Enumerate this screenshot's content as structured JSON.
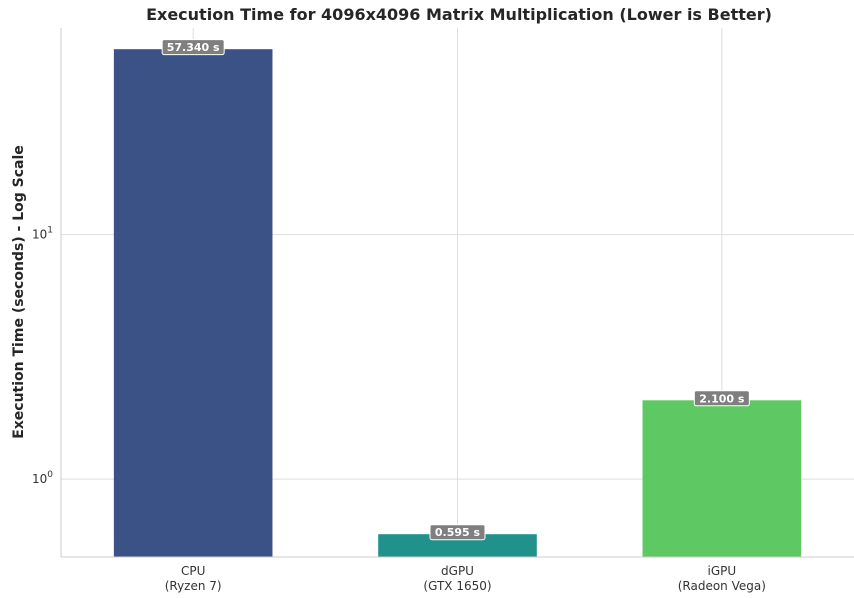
{
  "chart_data": {
    "type": "bar",
    "title": "Execution Time for 4096x4096 Matrix Multiplication (Lower is Better)",
    "ylabel": "Execution Time (seconds) - Log Scale",
    "xlabel": "",
    "yscale": "log",
    "ylim": [
      0.48,
      70
    ],
    "grid": true,
    "categories": [
      [
        "CPU",
        "(Ryzen 7)"
      ],
      [
        "dGPU",
        "(GTX 1650)"
      ],
      [
        "iGPU",
        "(Radeon Vega)"
      ]
    ],
    "values": [
      57.34,
      0.595,
      2.1
    ],
    "data_labels": [
      "57.340 s",
      "0.595 s",
      "2.100 s"
    ],
    "colors": [
      "#3b5286",
      "#21918c",
      "#5ec962"
    ],
    "y_ticks": [
      {
        "value": 1,
        "base": "10",
        "exp": "0"
      },
      {
        "value": 10,
        "base": "10",
        "exp": "1"
      }
    ]
  }
}
